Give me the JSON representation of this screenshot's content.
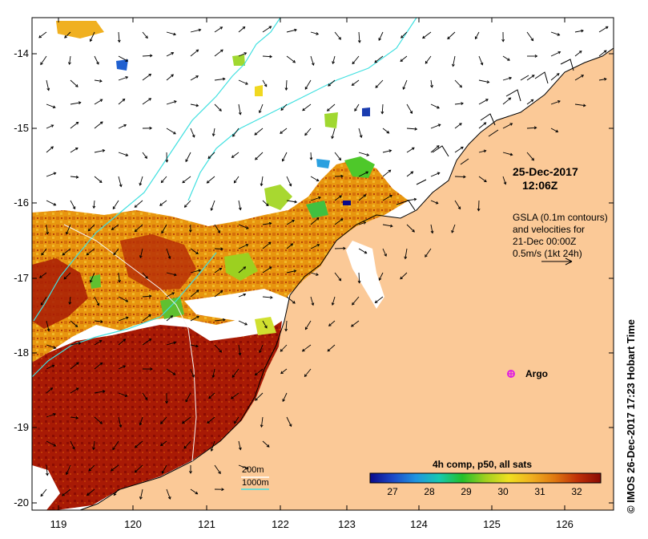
{
  "title": {
    "date": "25-Dec-2017",
    "time": "12:06Z"
  },
  "legend": {
    "line1": "GSLA (0.1m contours)",
    "line2": "and velocities for",
    "line3": "21-Dec 00:00Z",
    "line4": "0.5m/s (1kt 24h)"
  },
  "marker": {
    "label": "Argo",
    "color": "#e020e0"
  },
  "isobaths": {
    "shallow": "200m",
    "deep": "1000m",
    "color": "#40e0e0"
  },
  "colorbar": {
    "title": "4h comp, p50, all sats",
    "ticks": [
      "27",
      "28",
      "29",
      "30",
      "31",
      "32"
    ],
    "colors": [
      "#0a0a8a",
      "#1c49c8",
      "#1f95e0",
      "#17c9b0",
      "#22c02a",
      "#a0d020",
      "#f0e020",
      "#f0b020",
      "#e07810",
      "#c03008",
      "#8a0a04"
    ]
  },
  "axes": {
    "x_ticks": [
      "119",
      "120",
      "121",
      "122",
      "123",
      "124",
      "125",
      "126"
    ],
    "y_ticks": [
      "-14",
      "-15",
      "-16",
      "-17",
      "-18",
      "-19",
      "-20"
    ]
  },
  "colors": {
    "land": "#fbc997",
    "ocean": "#ffffff",
    "sst_hot": "#a01504",
    "sst_warm": "#e58a0e"
  },
  "credit": "© IMOS 26-Dec-2017 17:23 Hobart Time"
}
